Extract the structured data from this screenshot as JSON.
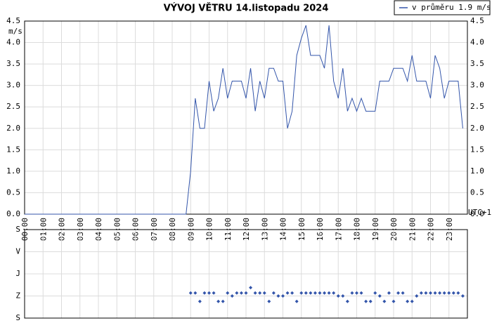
{
  "chart_data": [
    {
      "type": "line",
      "title": "VÝVOJ VĚTRU  14.listopadu 2024",
      "y_label": "m/s",
      "x_label": "UTC+1",
      "legend": "top-right",
      "grid": true,
      "xlim": [
        0,
        24
      ],
      "xticks": [
        {
          "value": 0,
          "label": "00:00"
        },
        {
          "value": 1,
          "label": "01:00"
        },
        {
          "value": 2,
          "label": "02:00"
        },
        {
          "value": 3,
          "label": "03:00"
        },
        {
          "value": 4,
          "label": "04:00"
        },
        {
          "value": 5,
          "label": "05:00"
        },
        {
          "value": 6,
          "label": "06:00"
        },
        {
          "value": 7,
          "label": "07:00"
        },
        {
          "value": 8,
          "label": "08:00"
        },
        {
          "value": 9,
          "label": "09:00"
        },
        {
          "value": 10,
          "label": "10:00"
        },
        {
          "value": 11,
          "label": "11:00"
        },
        {
          "value": 12,
          "label": "12:00"
        },
        {
          "value": 13,
          "label": "13:00"
        },
        {
          "value": 14,
          "label": "14:00"
        },
        {
          "value": 15,
          "label": "15:00"
        },
        {
          "value": 16,
          "label": "16:00"
        },
        {
          "value": 17,
          "label": "17:00"
        },
        {
          "value": 18,
          "label": "18:00"
        },
        {
          "value": 19,
          "label": "19:00"
        },
        {
          "value": 20,
          "label": "20:00"
        },
        {
          "value": 21,
          "label": "21:00"
        },
        {
          "value": 22,
          "label": "22:00"
        },
        {
          "value": 23,
          "label": "23:00"
        }
      ],
      "ylim": [
        0,
        4.5
      ],
      "yticks": [
        {
          "value": 0,
          "label": "0.0"
        },
        {
          "value": 0.5,
          "label": "0.5"
        },
        {
          "value": 1,
          "label": "1.0"
        },
        {
          "value": 1.5,
          "label": "1.5"
        },
        {
          "value": 2,
          "label": "2.0"
        },
        {
          "value": 2.5,
          "label": "2.5"
        },
        {
          "value": 3,
          "label": "3.0"
        },
        {
          "value": 3.5,
          "label": "3.5"
        },
        {
          "value": 4,
          "label": "4.0"
        },
        {
          "value": 4.5,
          "label": "4.5"
        }
      ],
      "x": [
        0,
        0.25,
        0.5,
        0.75,
        1,
        1.25,
        1.5,
        1.75,
        2,
        2.25,
        2.5,
        2.75,
        3,
        3.25,
        3.5,
        3.75,
        4,
        4.25,
        4.5,
        4.75,
        5,
        5.25,
        5.5,
        5.75,
        6,
        6.25,
        6.5,
        6.75,
        7,
        7.25,
        7.5,
        7.75,
        8,
        8.25,
        8.5,
        8.75,
        9,
        9.25,
        9.5,
        9.75,
        10,
        10.25,
        10.5,
        10.75,
        11,
        11.25,
        11.5,
        11.75,
        12,
        12.25,
        12.5,
        12.75,
        13,
        13.25,
        13.5,
        13.75,
        14,
        14.25,
        14.5,
        14.75,
        15,
        15.25,
        15.5,
        15.75,
        16,
        16.25,
        16.5,
        16.75,
        17,
        17.25,
        17.5,
        17.75,
        18,
        18.25,
        18.5,
        18.75,
        19,
        19.25,
        19.5,
        19.75,
        20,
        20.25,
        20.5,
        20.75,
        21,
        21.25,
        21.5,
        21.75,
        22,
        22.25,
        22.5,
        22.75,
        23,
        23.25,
        23.5,
        23.75
      ],
      "series": [
        {
          "name": "v průměru 1.9 m/s",
          "color": "#3355aa",
          "values": [
            0,
            0,
            0,
            0,
            0,
            0,
            0,
            0,
            0,
            0,
            0,
            0,
            0,
            0,
            0,
            0,
            0,
            0,
            0,
            0,
            0,
            0,
            0,
            0,
            0,
            0,
            0,
            0,
            0,
            0,
            0,
            0,
            0,
            0,
            0,
            0,
            1.0,
            2.7,
            2.0,
            2.0,
            3.1,
            2.4,
            2.7,
            3.4,
            2.7,
            3.1,
            3.1,
            3.1,
            2.7,
            3.4,
            2.4,
            3.1,
            2.7,
            3.4,
            3.4,
            3.1,
            3.1,
            2.0,
            2.4,
            3.7,
            4.1,
            4.4,
            3.7,
            3.7,
            3.7,
            3.4,
            4.4,
            3.1,
            2.7,
            3.4,
            2.4,
            2.7,
            2.4,
            2.7,
            2.4,
            2.4,
            2.4,
            3.1,
            3.1,
            3.1,
            3.4,
            3.4,
            3.4,
            3.1,
            3.7,
            3.1,
            3.1,
            3.1,
            2.7,
            3.7,
            3.4,
            2.7,
            3.1,
            3.1,
            3.1,
            2.0
          ]
        }
      ]
    },
    {
      "type": "scatter",
      "grid": true,
      "xlim": [
        0,
        24
      ],
      "xticks": [
        0,
        1,
        2,
        3,
        4,
        5,
        6,
        7,
        8,
        9,
        10,
        11,
        12,
        13,
        14,
        15,
        16,
        17,
        18,
        19,
        20,
        21,
        22,
        23
      ],
      "ylim": [
        360,
        0
      ],
      "yticks": [
        {
          "value": 0,
          "label": "S"
        },
        {
          "value": 90,
          "label": "V"
        },
        {
          "value": 180,
          "label": "J"
        },
        {
          "value": 270,
          "label": "Z"
        },
        {
          "value": 360,
          "label": "S"
        }
      ],
      "x": [
        9,
        9.25,
        9.5,
        9.75,
        10,
        10.25,
        10.5,
        10.75,
        11,
        11.25,
        11.5,
        11.75,
        12,
        12.25,
        12.5,
        12.75,
        13,
        13.25,
        13.5,
        13.75,
        14,
        14.25,
        14.5,
        14.75,
        15,
        15.25,
        15.5,
        15.75,
        16,
        16.25,
        16.5,
        16.75,
        17,
        17.25,
        17.5,
        17.75,
        18,
        18.25,
        18.5,
        18.75,
        19,
        19.25,
        19.5,
        19.75,
        20,
        20.25,
        20.5,
        20.75,
        21,
        21.25,
        21.5,
        21.75,
        22,
        22.25,
        22.5,
        22.75,
        23,
        23.25,
        23.5,
        23.75
      ],
      "color": "#3355aa",
      "values": [
        258,
        258,
        292,
        258,
        258,
        258,
        292,
        292,
        258,
        270,
        258,
        258,
        258,
        236,
        258,
        258,
        258,
        292,
        258,
        270,
        270,
        258,
        258,
        292,
        258,
        258,
        258,
        258,
        258,
        258,
        258,
        258,
        270,
        270,
        292,
        258,
        258,
        258,
        292,
        292,
        258,
        270,
        292,
        258,
        292,
        258,
        258,
        292,
        292,
        270,
        258,
        258,
        258,
        258,
        258,
        258,
        258,
        258,
        258,
        270
      ]
    }
  ]
}
